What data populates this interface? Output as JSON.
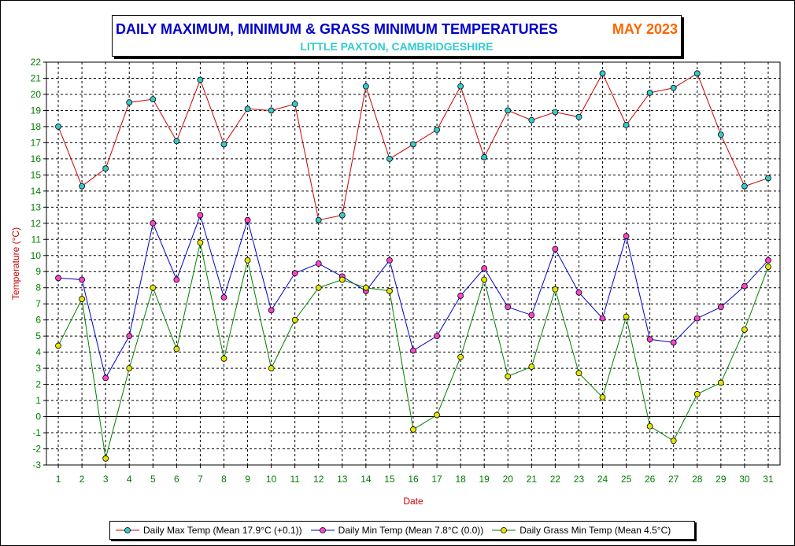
{
  "title": {
    "main": "DAILY MAXIMUM, MINIMUM & GRASS MINIMUM TEMPERATURES",
    "month": "MAY 2023",
    "subtitle": "LITTLE PAXTON, CAMBRIDGESHIRE"
  },
  "colors": {
    "title_main": "#0000cc",
    "title_month": "#ff6600",
    "subtitle": "#33cccc",
    "axis_text": "#008000",
    "ylabel": "#cc0000",
    "xlabel": "#cc0000",
    "max_line": "#cc0000",
    "max_marker": "#33cccc",
    "min_line": "#0000cc",
    "min_marker": "#ff44cc",
    "grass_line": "#008000",
    "grass_marker": "#e6e600"
  },
  "chart_data": {
    "type": "line",
    "xlabel": "Date",
    "ylabel": "Temperature (°C)",
    "ylim": [
      -3,
      22
    ],
    "yticks": [
      -3,
      -2,
      -1,
      0,
      1,
      2,
      3,
      4,
      5,
      6,
      7,
      8,
      9,
      10,
      11,
      12,
      13,
      14,
      15,
      16,
      17,
      18,
      19,
      20,
      21,
      22
    ],
    "x": [
      1,
      2,
      3,
      4,
      5,
      6,
      7,
      8,
      9,
      10,
      11,
      12,
      13,
      14,
      15,
      16,
      17,
      18,
      19,
      20,
      21,
      22,
      23,
      24,
      25,
      26,
      27,
      28,
      29,
      30,
      31
    ],
    "grid": "dashed",
    "legend_position": "bottom",
    "series": [
      {
        "name": "Daily Max Temp",
        "legend": "Daily Max Temp (Mean 17.9°C (+0.1))",
        "values": [
          18.0,
          14.3,
          15.4,
          19.5,
          19.7,
          17.1,
          20.9,
          16.9,
          19.1,
          19.0,
          19.4,
          12.2,
          12.5,
          20.5,
          16.0,
          16.9,
          17.8,
          20.5,
          16.1,
          19.0,
          18.4,
          18.9,
          18.6,
          21.3,
          18.1,
          20.1,
          20.4,
          21.3,
          17.5,
          14.3,
          14.8
        ]
      },
      {
        "name": "Daily Min Temp",
        "legend": "Daily Min Temp (Mean 7.8°C (0.0))",
        "values": [
          8.6,
          8.5,
          2.4,
          5.0,
          12.0,
          8.5,
          12.5,
          7.4,
          12.2,
          6.6,
          8.9,
          9.5,
          8.7,
          7.8,
          9.7,
          4.1,
          5.0,
          7.5,
          9.2,
          6.8,
          6.3,
          10.4,
          7.7,
          6.1,
          11.2,
          4.8,
          4.6,
          6.1,
          6.8,
          8.1,
          9.7
        ]
      },
      {
        "name": "Daily Grass Min Temp",
        "legend": "Daily Grass Min Temp (Mean 4.5°C)",
        "values": [
          4.4,
          7.3,
          -2.6,
          3.0,
          8.0,
          4.2,
          10.8,
          3.6,
          9.7,
          3.0,
          6.0,
          8.0,
          8.5,
          8.0,
          7.8,
          -0.8,
          0.1,
          3.7,
          8.5,
          2.5,
          3.1,
          7.9,
          2.7,
          1.2,
          6.2,
          -0.6,
          -1.5,
          1.4,
          2.1,
          5.4,
          9.3
        ]
      }
    ]
  }
}
